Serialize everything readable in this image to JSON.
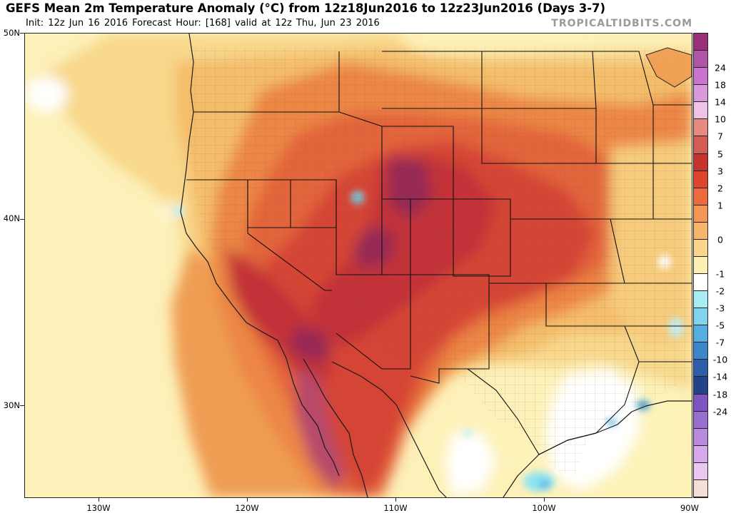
{
  "header": {
    "title": "GEFS Mean 2m Temperature Anomaly (°C) from 12z18Jun2016 to 12z23Jun2016 (Days 3-7)",
    "subtitle": "Init: 12z Jun 16 2016   Forecast Hour: [168]   valid at 12z Thu, Jun 23 2016",
    "brand": "TROPICALTIDBITS.COM"
  },
  "map": {
    "region": "Western United States and northern Mexico",
    "lat_range": [
      25,
      50
    ],
    "lon_range": [
      -135,
      -90
    ],
    "lat_labels": [
      "50N",
      "40N",
      "30N"
    ],
    "lon_labels": [
      "130W",
      "120W",
      "110W",
      "100W",
      "90W"
    ],
    "layers": [
      "state-boundaries",
      "county-boundaries",
      "coastlines",
      "temperature-anomaly-fill"
    ]
  },
  "colorbar": {
    "labels": [
      "24",
      "18",
      "14",
      "10",
      "7",
      "5",
      "3",
      "2",
      "1",
      "0",
      "-1",
      "-2",
      "-3",
      "-5",
      "-7",
      "-10",
      "-14",
      "-18",
      "-24"
    ],
    "colors": [
      "#9c2f78",
      "#b054a6",
      "#cb74cd",
      "#d99ad9",
      "#eec3e8",
      "#e88a80",
      "#d45c54",
      "#c5352e",
      "#e0452c",
      "#ec6a3c",
      "#f49553",
      "#f7b56c",
      "#fad58b",
      "#fdf0b2",
      "#ffffff",
      "#a8edf3",
      "#7fd3ec",
      "#55aee0",
      "#3d86c9",
      "#2c5ea9",
      "#244288",
      "#7d55c0",
      "#9a6ed0",
      "#b989de",
      "#d6a8ea",
      "#ebc8ef",
      "#f6ddd5"
    ]
  },
  "legend_meaning": {
    "warm": [
      "#f4cc76",
      "#f0a65b",
      "#e9793f",
      "#db4a2b",
      "#b82a2e",
      "#8f2a4e"
    ],
    "neutral": "#fdf2b8",
    "cool": [
      "#7ee0f0",
      "#59b5e6",
      "#3d86c9"
    ]
  }
}
